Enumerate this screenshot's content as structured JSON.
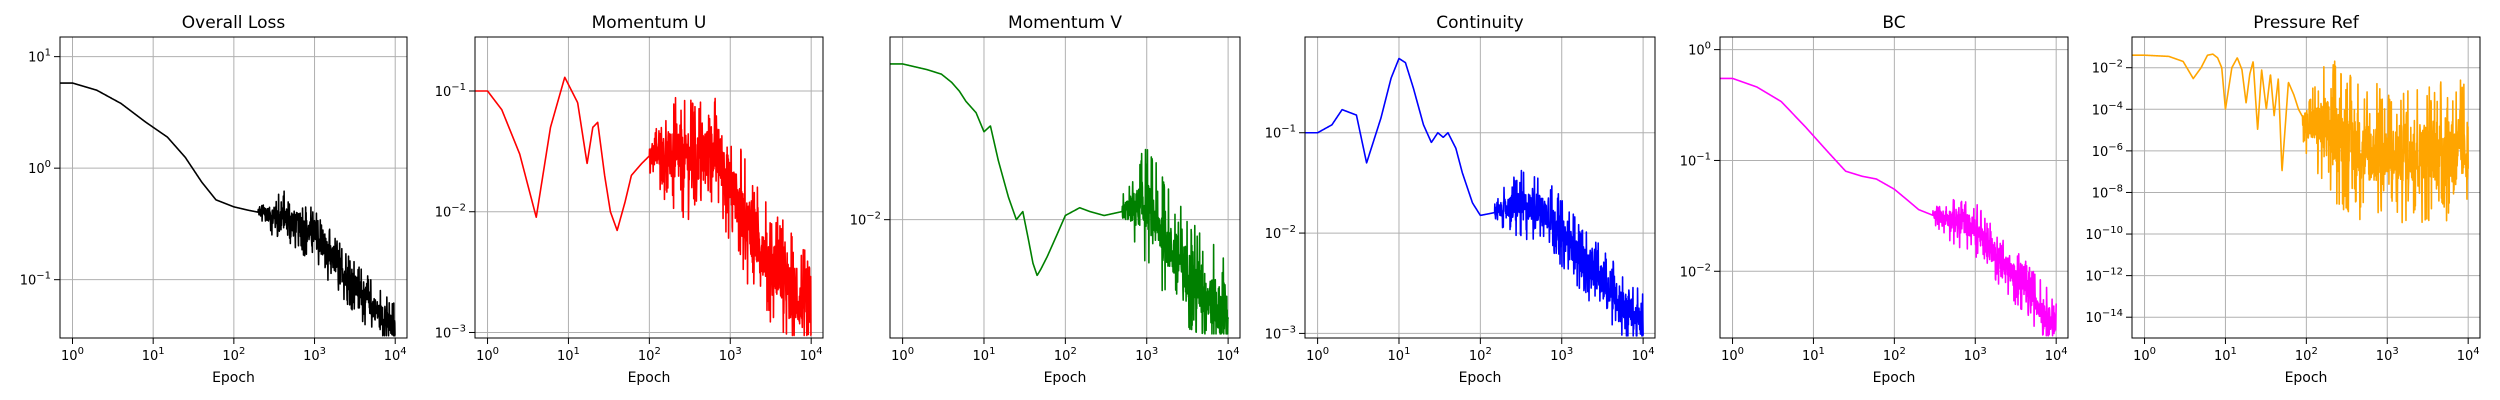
{
  "chart_data": [
    {
      "type": "line",
      "title": "Overall Loss",
      "xlabel": "Epoch",
      "ylabel": "",
      "xscale": "log",
      "yscale": "log",
      "xlim": [
        0.7,
        14000
      ],
      "ylim": [
        0.03,
        15
      ],
      "xticks": [
        1,
        10,
        100,
        1000,
        10000
      ],
      "yticks": [
        0.1,
        1,
        10
      ],
      "grid": true,
      "color": "#000000",
      "noise": 0.25,
      "noise_from": 200,
      "series": [
        {
          "x": [
            0.7,
            1,
            2,
            4,
            8,
            15,
            25,
            40,
            60,
            100,
            150,
            300,
            500,
            1000,
            2000,
            5000,
            10000
          ],
          "y": [
            5.8,
            5.8,
            5.0,
            3.8,
            2.6,
            1.9,
            1.25,
            0.75,
            0.52,
            0.45,
            0.42,
            0.38,
            0.35,
            0.25,
            0.13,
            0.06,
            0.035
          ]
        }
      ]
    },
    {
      "type": "line",
      "title": "Momentum U",
      "xlabel": "Epoch",
      "ylabel": "",
      "xscale": "log",
      "yscale": "log",
      "xlim": [
        0.7,
        14000
      ],
      "ylim": [
        0.0009,
        0.28
      ],
      "xticks": [
        1,
        10,
        100,
        1000,
        10000
      ],
      "yticks": [
        0.001,
        0.01,
        0.1
      ],
      "grid": true,
      "color": "#ff0000",
      "noise": 0.5,
      "noise_from": 100,
      "series": [
        {
          "x": [
            0.7,
            1,
            1.5,
            2.5,
            4,
            6,
            9,
            13,
            17,
            20,
            23,
            28,
            33,
            40,
            50,
            60,
            80,
            100,
            150,
            200,
            300,
            500,
            700,
            900,
            1200,
            1500,
            2000,
            3000,
            5000,
            7000,
            10000
          ],
          "y": [
            0.1,
            0.1,
            0.07,
            0.03,
            0.009,
            0.05,
            0.13,
            0.08,
            0.025,
            0.05,
            0.055,
            0.02,
            0.01,
            0.007,
            0.012,
            0.02,
            0.025,
            0.029,
            0.03,
            0.028,
            0.027,
            0.03,
            0.03,
            0.02,
            0.013,
            0.009,
            0.006,
            0.004,
            0.0025,
            0.0018,
            0.0013
          ]
        }
      ]
    },
    {
      "type": "line",
      "title": "Momentum V",
      "xlabel": "Epoch",
      "ylabel": "",
      "xscale": "log",
      "yscale": "log",
      "xlim": [
        0.7,
        14000
      ],
      "ylim": [
        0.0025,
        0.085
      ],
      "xticks": [
        1,
        10,
        100,
        1000,
        10000
      ],
      "yticks": [
        0.01
      ],
      "grid": true,
      "color": "#008000",
      "noise": 0.3,
      "noise_from": 500,
      "series": [
        {
          "x": [
            0.7,
            1,
            2,
            3,
            4,
            5,
            6,
            8,
            10,
            12,
            15,
            20,
            25,
            30,
            35,
            40,
            45,
            50,
            60,
            80,
            100,
            150,
            200,
            300,
            500,
            700,
            1000,
            2000,
            5000,
            10000
          ],
          "y": [
            0.062,
            0.062,
            0.058,
            0.055,
            0.05,
            0.045,
            0.04,
            0.035,
            0.028,
            0.03,
            0.02,
            0.013,
            0.01,
            0.011,
            0.008,
            0.006,
            0.0052,
            0.0056,
            0.0065,
            0.0085,
            0.0105,
            0.0115,
            0.011,
            0.0105,
            0.011,
            0.0115,
            0.012,
            0.007,
            0.0042,
            0.0032
          ]
        }
      ]
    },
    {
      "type": "line",
      "title": "Continuity",
      "xlabel": "Epoch",
      "ylabel": "",
      "xscale": "log",
      "yscale": "log",
      "xlim": [
        0.7,
        14000
      ],
      "ylim": [
        0.0009,
        0.9
      ],
      "xticks": [
        1,
        10,
        100,
        1000,
        10000
      ],
      "yticks": [
        0.001,
        0.01,
        0.1
      ],
      "grid": true,
      "color": "#0000ff",
      "noise": 0.35,
      "noise_from": 150,
      "series": [
        {
          "x": [
            0.7,
            1,
            1.5,
            2,
            3,
            4,
            6,
            8,
            10,
            12,
            15,
            20,
            25,
            30,
            35,
            40,
            50,
            60,
            80,
            100,
            150,
            200,
            300,
            500,
            700,
            1000,
            2000,
            5000,
            10000
          ],
          "y": [
            0.1,
            0.1,
            0.12,
            0.17,
            0.15,
            0.05,
            0.14,
            0.35,
            0.55,
            0.5,
            0.28,
            0.12,
            0.08,
            0.1,
            0.09,
            0.1,
            0.07,
            0.04,
            0.02,
            0.015,
            0.016,
            0.018,
            0.019,
            0.018,
            0.015,
            0.01,
            0.005,
            0.0022,
            0.0012
          ]
        }
      ]
    },
    {
      "type": "line",
      "title": "BC",
      "xlabel": "Epoch",
      "ylabel": "",
      "xscale": "log",
      "yscale": "log",
      "xlim": [
        0.7,
        14000
      ],
      "ylim": [
        0.0025,
        1.3
      ],
      "xticks": [
        1,
        10,
        100,
        1000,
        10000
      ],
      "yticks": [
        0.01,
        0.1,
        1
      ],
      "grid": true,
      "color": "#ff00ff",
      "noise": 0.25,
      "noise_from": 300,
      "series": [
        {
          "x": [
            0.7,
            1,
            2,
            4,
            8,
            15,
            25,
            40,
            60,
            100,
            150,
            200,
            300,
            500,
            700,
            1000,
            2000,
            5000,
            10000
          ],
          "y": [
            0.55,
            0.55,
            0.46,
            0.34,
            0.2,
            0.12,
            0.08,
            0.072,
            0.068,
            0.055,
            0.043,
            0.036,
            0.032,
            0.03,
            0.028,
            0.024,
            0.013,
            0.006,
            0.0032
          ]
        }
      ]
    },
    {
      "type": "line",
      "title": "Pressure Ref",
      "xlabel": "Epoch",
      "ylabel": "",
      "xscale": "log",
      "yscale": "log",
      "xlim": [
        0.7,
        14000
      ],
      "ylim": [
        1e-15,
        0.3
      ],
      "xticks": [
        1,
        10,
        100,
        1000,
        10000
      ],
      "yticks": [
        1e-14,
        1e-12,
        1e-10,
        1e-08,
        1e-06,
        0.0001,
        0.01
      ],
      "grid": true,
      "color": "#ffa500",
      "noise": 3.5,
      "noise_from": 90,
      "series": [
        {
          "x": [
            0.7,
            1,
            2,
            3,
            4,
            5,
            6,
            7,
            8,
            9,
            10,
            12,
            14,
            16,
            18,
            20,
            22,
            25,
            28,
            32,
            36,
            40,
            45,
            50,
            60,
            70,
            80,
            100,
            200,
            500,
            1000,
            2000,
            5000,
            10000
          ],
          "y": [
            0.04,
            0.04,
            0.035,
            0.02,
            0.003,
            0.01,
            0.04,
            0.045,
            0.03,
            0.01,
            0.0001,
            0.01,
            0.03,
            0.008,
            0.0002,
            0.005,
            0.02,
            1e-05,
            0.008,
            0.0001,
            0.005,
            5e-05,
            0.003,
            1e-07,
            0.002,
            0.0005,
            0.0001,
            2e-05,
            1e-05,
            1e-06,
            5e-07,
            1e-06,
            1e-06,
            1e-06
          ]
        }
      ]
    }
  ]
}
